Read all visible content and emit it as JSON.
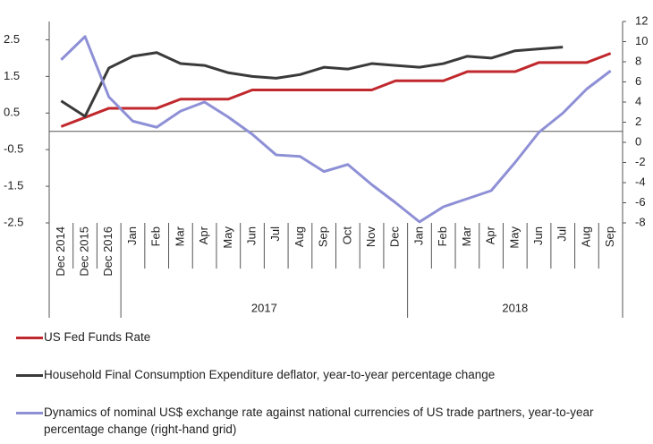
{
  "chart_data": {
    "type": "line",
    "categories": [
      "Dec 2014",
      "Dec 2015",
      "Dec 2016",
      "Jan",
      "Feb",
      "Mar",
      "Apr",
      "May",
      "Jun",
      "Jul",
      "Aug",
      "Sep",
      "Oct",
      "Nov",
      "Dec",
      "Jan",
      "Feb",
      "Mar",
      "Apr",
      "May",
      "Jun",
      "Jul",
      "Aug",
      "Sep"
    ],
    "groups": [
      null,
      null,
      null,
      "2017",
      "2017",
      "2017",
      "2017",
      "2017",
      "2017",
      "2017",
      "2017",
      "2017",
      "2017",
      "2017",
      "2017",
      "2018",
      "2018",
      "2018",
      "2018",
      "2018",
      "2018",
      "2018",
      "2018",
      "2018"
    ],
    "ylim": [
      -2.5,
      3
    ],
    "yticks": [
      -2.5,
      -1.5,
      -0.5,
      0.5,
      1.5,
      2.5
    ],
    "y2lim": [
      -8,
      12
    ],
    "y2ticks": [
      -8,
      -6,
      -4,
      -2,
      0,
      2,
      4,
      6,
      8,
      10,
      12
    ],
    "series": [
      {
        "name": "US Fed Funds Rate",
        "color": "#c0282d",
        "values": [
          0.13,
          0.38,
          0.63,
          0.63,
          0.63,
          0.88,
          0.88,
          0.88,
          1.13,
          1.13,
          1.13,
          1.13,
          1.13,
          1.13,
          1.38,
          1.38,
          1.38,
          1.63,
          1.63,
          1.63,
          1.88,
          1.88,
          1.88,
          2.13
        ]
      },
      {
        "name": "Household Final Consumption Expenditure deflator, year-to-year percentage change",
        "color": "#3a3a3a",
        "values": [
          0.83,
          0.41,
          1.73,
          2.05,
          2.15,
          1.85,
          1.8,
          1.6,
          1.5,
          1.45,
          1.55,
          1.75,
          1.7,
          1.85,
          1.8,
          1.75,
          1.85,
          2.05,
          2.0,
          2.2,
          2.25,
          2.3,
          null,
          null
        ]
      },
      {
        "name": "Dynamics of nominal US$ exchange rate against national currencies of US trade partners, year-to-year percentage change (right-hand grid)",
        "color": "#8e90d6",
        "axis": "y2",
        "values": [
          8.2,
          10.5,
          4.5,
          2.1,
          1.5,
          3.1,
          4.0,
          2.5,
          0.8,
          -1.25,
          -1.4,
          -2.9,
          -2.2,
          -4.2,
          -6.0,
          -7.9,
          -6.4,
          -5.6,
          -4.8,
          -2.0,
          1.0,
          2.9,
          5.3,
          7.1
        ]
      }
    ]
  }
}
